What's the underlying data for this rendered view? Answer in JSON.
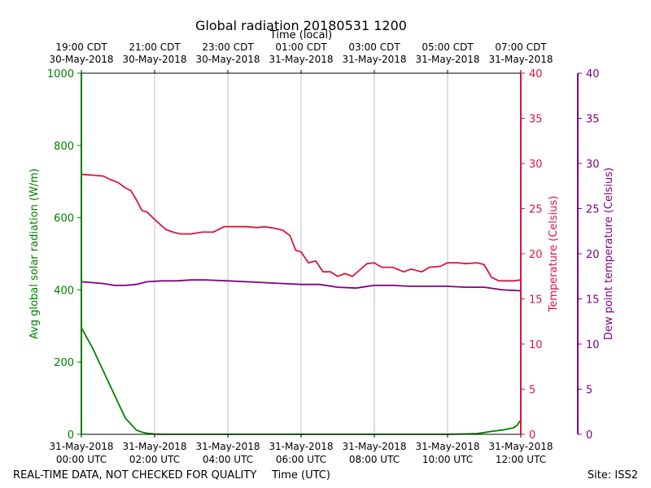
{
  "chart_data": {
    "type": "line",
    "title": "Global radiation 20180531 1200",
    "top_axis_label": "Time (local)",
    "xlabel": "Time (UTC)",
    "footer_left": "REAL-TIME DATA, NOT CHECKED FOR QUALITY",
    "footer_right": "Site: ISS2",
    "grid": "vertical",
    "xlim_hours": [
      0,
      12
    ],
    "x_ticks_bottom": [
      {
        "hour": 0,
        "date": "31-May-2018",
        "time": "00:00 UTC"
      },
      {
        "hour": 2,
        "date": "31-May-2018",
        "time": "02:00 UTC"
      },
      {
        "hour": 4,
        "date": "31-May-2018",
        "time": "04:00 UTC"
      },
      {
        "hour": 6,
        "date": "31-May-2018",
        "time": "06:00 UTC"
      },
      {
        "hour": 8,
        "date": "31-May-2018",
        "time": "08:00 UTC"
      },
      {
        "hour": 10,
        "date": "31-May-2018",
        "time": "10:00 UTC"
      },
      {
        "hour": 12,
        "date": "31-May-2018",
        "time": "12:00 UTC"
      }
    ],
    "x_ticks_top": [
      {
        "hour": 0,
        "time": "19:00 CDT",
        "date": "30-May-2018"
      },
      {
        "hour": 2,
        "time": "21:00 CDT",
        "date": "30-May-2018"
      },
      {
        "hour": 4,
        "time": "23:00 CDT",
        "date": "30-May-2018"
      },
      {
        "hour": 6,
        "time": "01:00 CDT",
        "date": "31-May-2018"
      },
      {
        "hour": 8,
        "time": "03:00 CDT",
        "date": "31-May-2018"
      },
      {
        "hour": 10,
        "time": "05:00 CDT",
        "date": "31-May-2018"
      },
      {
        "hour": 12,
        "time": "07:00 CDT",
        "date": "31-May-2018"
      }
    ],
    "axes": {
      "left": {
        "label": "Avg global solar radiation (W/m)",
        "ylim": [
          0,
          1000
        ],
        "ticks": [
          0,
          200,
          400,
          600,
          800,
          1000
        ],
        "color": "#008000"
      },
      "right1": {
        "label": "Temperature (Celsius)",
        "ylim": [
          0,
          40
        ],
        "ticks": [
          0,
          5,
          10,
          15,
          20,
          25,
          30,
          35,
          40
        ],
        "color": "#dc143c"
      },
      "right2": {
        "label": "Dew point temperature (Celsius)",
        "ylim": [
          0,
          40
        ],
        "ticks": [
          0,
          5,
          10,
          15,
          20,
          25,
          30,
          35,
          40
        ],
        "color": "#800080"
      }
    },
    "series": [
      {
        "axis": "left",
        "color": "#008000",
        "x": [
          0,
          0.3,
          0.6,
          0.9,
          1.2,
          1.5,
          1.65,
          1.8,
          2.0,
          2.2,
          3,
          5,
          8,
          10,
          10.8,
          11.0,
          11.2,
          11.5,
          11.8,
          11.9,
          12.0
        ],
        "values": [
          295,
          240,
          175,
          110,
          45,
          12,
          6,
          3,
          1,
          0,
          0,
          0,
          0,
          0,
          2,
          5,
          8,
          12,
          18,
          25,
          40
        ]
      },
      {
        "axis": "right1",
        "color": "#dc143c",
        "x": [
          0,
          0.3,
          0.6,
          0.8,
          1.0,
          1.2,
          1.35,
          1.5,
          1.65,
          1.8,
          2.0,
          2.3,
          2.5,
          2.7,
          3.0,
          3.3,
          3.6,
          3.9,
          4.2,
          4.5,
          4.8,
          5.0,
          5.3,
          5.5,
          5.7,
          5.85,
          6.0,
          6.2,
          6.4,
          6.6,
          6.8,
          7.0,
          7.2,
          7.4,
          7.6,
          7.8,
          8.0,
          8.2,
          8.5,
          8.8,
          9.0,
          9.3,
          9.5,
          9.8,
          10.0,
          10.3,
          10.5,
          10.8,
          11.0,
          11.2,
          11.4,
          11.6,
          11.8,
          12.0
        ],
        "values": [
          28.8,
          28.7,
          28.6,
          28.2,
          27.9,
          27.3,
          27.0,
          26.0,
          24.8,
          24.6,
          23.8,
          22.7,
          22.4,
          22.2,
          22.2,
          22.4,
          22.4,
          23.0,
          23.0,
          23.0,
          22.9,
          23.0,
          22.8,
          22.6,
          22.0,
          20.4,
          20.2,
          19.0,
          19.2,
          18.0,
          18.0,
          17.5,
          17.8,
          17.5,
          18.2,
          18.9,
          19.0,
          18.5,
          18.5,
          18.0,
          18.3,
          18.0,
          18.5,
          18.6,
          19.0,
          19.0,
          18.9,
          19.0,
          18.8,
          17.4,
          17.0,
          17.0,
          17.0,
          17.1
        ]
      },
      {
        "axis": "right2",
        "color": "#800080",
        "x": [
          0,
          0.3,
          0.6,
          0.9,
          1.2,
          1.5,
          1.8,
          2.2,
          2.6,
          3.0,
          3.4,
          4.0,
          4.5,
          5.0,
          5.5,
          6.0,
          6.5,
          7.0,
          7.5,
          8.0,
          8.5,
          9.0,
          9.5,
          10.0,
          10.5,
          11.0,
          11.5,
          12.0
        ],
        "values": [
          16.9,
          16.8,
          16.7,
          16.5,
          16.5,
          16.6,
          16.9,
          17.0,
          17.0,
          17.1,
          17.1,
          17.0,
          16.9,
          16.8,
          16.7,
          16.6,
          16.6,
          16.3,
          16.2,
          16.5,
          16.5,
          16.4,
          16.4,
          16.4,
          16.3,
          16.3,
          16.0,
          15.9
        ]
      }
    ]
  }
}
